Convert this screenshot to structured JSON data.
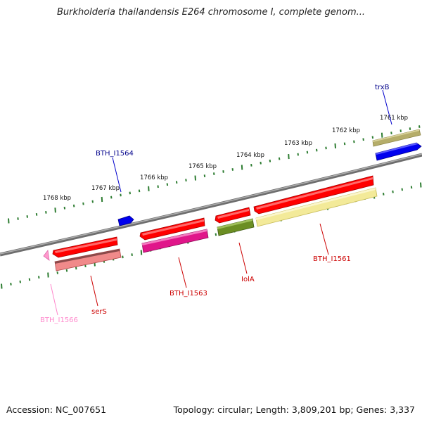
{
  "title": "Burkholderia thailandensis E264 chromosome I, complete genom...",
  "footer": {
    "accession": "Accession: NC_007651",
    "topology": "Topology: circular; Length: 3,809,201 bp; Genes: 3,337"
  },
  "scale_labels": [
    "1761 kbp",
    "1762 kbp",
    "1763 kbp",
    "1764 kbp",
    "1765 kbp",
    "1766 kbp",
    "1767 kbp",
    "1768 kbp"
  ],
  "gene_labels": [
    {
      "name": "trxB",
      "color": "#00008b"
    },
    {
      "name": "BTH_I1564",
      "color": "#00008b"
    },
    {
      "name": "BTH_I1561",
      "color": "#cc0000"
    },
    {
      "name": "IolA",
      "color": "#cc0000"
    },
    {
      "name": "BTH_I1563",
      "color": "#cc0000"
    },
    {
      "name": "serS",
      "color": "#cc0000"
    },
    {
      "name": "BTH_I1566",
      "color": "#ff88cc"
    }
  ],
  "colors": {
    "backbone": "#777777",
    "ticks": "#2e7d32",
    "red": "#ff0000",
    "blue": "#0000ee",
    "olive": "#6b8e23",
    "khaki": "#b5ad6a",
    "pale_yellow": "#f3ea99",
    "magenta": "#e0168a",
    "salmon": "#f08a8a",
    "pink": "#ff99cc"
  }
}
